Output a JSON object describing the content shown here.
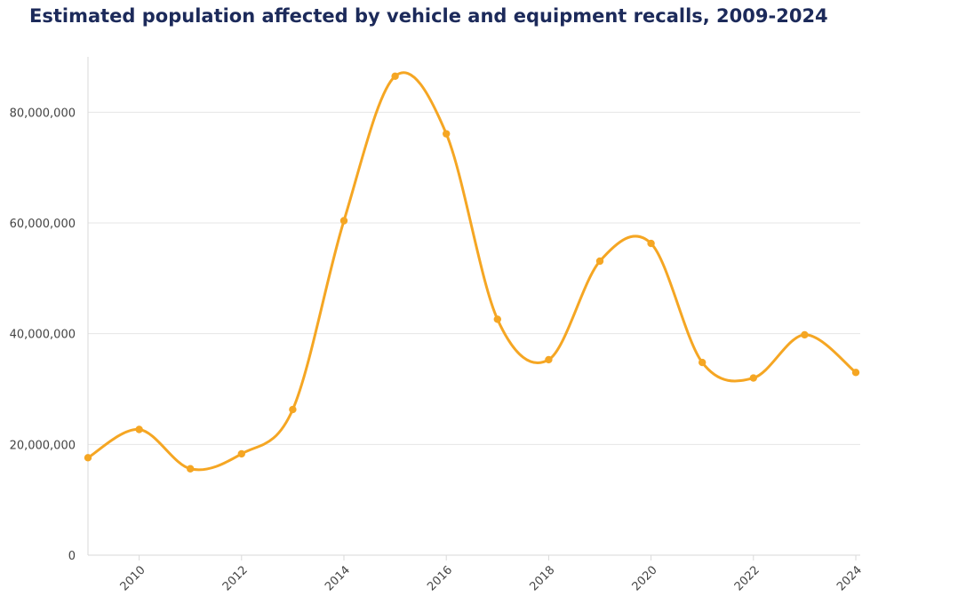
{
  "chart_data": {
    "type": "line",
    "title": "Estimated population affected by vehicle and equipment recalls, 2009-2024",
    "xlabel": "",
    "ylabel": "",
    "x": [
      2009,
      2010,
      2011,
      2012,
      2013,
      2014,
      2015,
      2016,
      2017,
      2018,
      2019,
      2020,
      2021,
      2022,
      2023,
      2024
    ],
    "values": [
      17600000,
      22700000,
      15600000,
      18300000,
      26300000,
      60400000,
      86500000,
      76100000,
      42600000,
      35300000,
      53100000,
      56300000,
      34800000,
      32000000,
      39800000,
      33000000
    ],
    "xlim": [
      2009,
      2024
    ],
    "ylim": [
      0,
      90000000
    ],
    "x_ticks": [
      2010,
      2012,
      2014,
      2016,
      2018,
      2020,
      2022,
      2024
    ],
    "x_tick_labels": [
      "2010",
      "2012",
      "2014",
      "2016",
      "2018",
      "2020",
      "2022",
      "2024"
    ],
    "y_ticks": [
      0,
      20000000,
      40000000,
      60000000,
      80000000
    ],
    "y_tick_labels": [
      "0",
      "20,000,000",
      "40,000,000",
      "60,000,000",
      "80,000,000"
    ],
    "grid": true,
    "legend": "none",
    "line_color": "#f5a623",
    "grid_color": "#e6e6e6",
    "axis_color": "#d9d9d9"
  }
}
